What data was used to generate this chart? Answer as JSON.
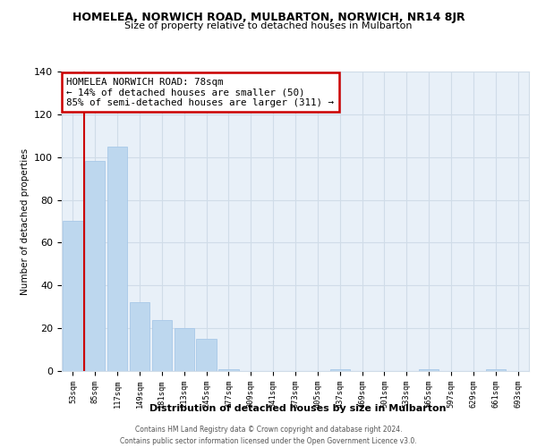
{
  "title": "HOMELEA, NORWICH ROAD, MULBARTON, NORWICH, NR14 8JR",
  "subtitle": "Size of property relative to detached houses in Mulbarton",
  "xlabel": "Distribution of detached houses by size in Mulbarton",
  "ylabel": "Number of detached properties",
  "bar_labels": [
    "53sqm",
    "85sqm",
    "117sqm",
    "149sqm",
    "181sqm",
    "213sqm",
    "245sqm",
    "277sqm",
    "309sqm",
    "341sqm",
    "373sqm",
    "405sqm",
    "437sqm",
    "469sqm",
    "501sqm",
    "533sqm",
    "565sqm",
    "597sqm",
    "629sqm",
    "661sqm",
    "693sqm"
  ],
  "bar_values": [
    70,
    98,
    105,
    32,
    24,
    20,
    15,
    1,
    0,
    0,
    0,
    0,
    1,
    0,
    0,
    0,
    1,
    0,
    0,
    1,
    0
  ],
  "bar_color": "#bdd7ee",
  "bar_edge_color": "#a8c8e8",
  "red_line_x": 0.5,
  "annotation_title": "HOMELEA NORWICH ROAD: 78sqm",
  "annotation_line1": "← 14% of detached houses are smaller (50)",
  "annotation_line2": "85% of semi-detached houses are larger (311) →",
  "annotation_box_color": "#ffffff",
  "annotation_box_edge": "#cc0000",
  "ylim": [
    0,
    140
  ],
  "yticks": [
    0,
    20,
    40,
    60,
    80,
    100,
    120,
    140
  ],
  "grid_color": "#d0dce8",
  "bg_color": "#e8f0f8",
  "footer1": "Contains HM Land Registry data © Crown copyright and database right 2024.",
  "footer2": "Contains public sector information licensed under the Open Government Licence v3.0."
}
